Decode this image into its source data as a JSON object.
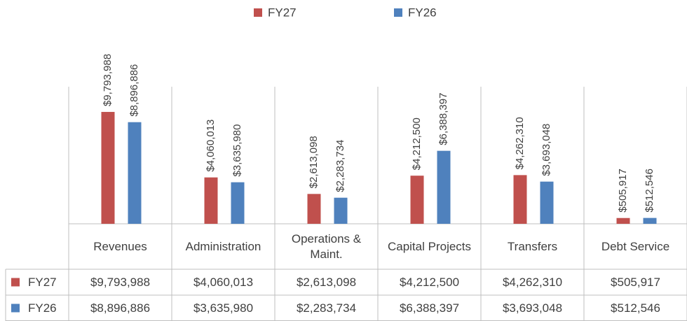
{
  "chart_data": {
    "type": "bar",
    "categories": [
      "Revenues",
      "Administration",
      "Operations & Maint.",
      "Capital Projects",
      "Transfers",
      "Debt Service"
    ],
    "series": [
      {
        "name": "FY27",
        "color": "#c0504d",
        "values": [
          9793988,
          4060013,
          2613098,
          4212500,
          4262310,
          505917
        ],
        "value_labels": [
          "$9,793,988",
          "$4,060,013",
          "$2,613,098",
          "$4,212,500",
          "$4,262,310",
          "$505,917"
        ]
      },
      {
        "name": "FY26",
        "color": "#4f81bd",
        "values": [
          8896886,
          3635980,
          2283734,
          6388397,
          3693048,
          512546
        ],
        "value_labels": [
          "$8,896,886",
          "$3,635,980",
          "$2,283,734",
          "$6,388,397",
          "$3,693,048",
          "$512,546"
        ]
      }
    ],
    "ylim": [
      0,
      12000000
    ],
    "legend": "top",
    "data_table": true
  }
}
